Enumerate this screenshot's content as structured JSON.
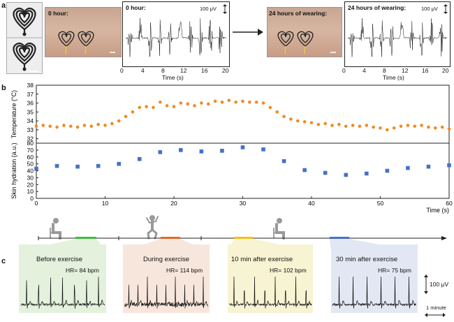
{
  "panels": {
    "a": "a",
    "b": "b",
    "c": "c"
  },
  "panel_a": {
    "photo1_label": "0 hour:",
    "photo2_label": "24 hours of wearing:",
    "chart1": {
      "title": "0 hour:",
      "scale": "100 μV",
      "xlabel": "Time (s)",
      "xticks": [
        "0",
        "4",
        "8",
        "12",
        "16",
        "20"
      ]
    },
    "chart2": {
      "title": "24 hours of wearing:",
      "scale": "100 μV",
      "xlabel": "Time (s)",
      "xticks": [
        "0",
        "4",
        "8",
        "12",
        "16",
        "20"
      ]
    }
  },
  "panel_c": {
    "segments": [
      {
        "title": "Before exercise",
        "hr": "HR= 84 bpm",
        "bg": "#e3f1dd",
        "marker": "#3fbf3f"
      },
      {
        "title": "During exercise",
        "hr": "HR= 114 bpm",
        "bg": "#f7e6dc",
        "marker": "#e06a2a"
      },
      {
        "title": "10 min after exercise",
        "hr": "HR= 102 bpm",
        "bg": "#f7f3d3",
        "marker": "#f0c21a"
      },
      {
        "title": "30 min after exercise",
        "hr": "HR= 75 bpm",
        "bg": "#e2e8f3",
        "marker": "#4a6fc8"
      }
    ],
    "scale_v": "100 μV",
    "scale_t": "1 minute"
  },
  "chart_data": [
    {
      "type": "scatter",
      "title": "",
      "xlabel": "Time (s)",
      "ylabel": "Temperature (°C)",
      "xlim": [
        0,
        60
      ],
      "ylim": [
        31.5,
        38
      ],
      "yticks": [
        32,
        33,
        34,
        35,
        36,
        37,
        38
      ],
      "xticks": [
        0,
        10,
        20,
        30,
        40,
        50,
        60
      ],
      "color": "#f08a24",
      "x": [
        0,
        1,
        2,
        3,
        4,
        5,
        6,
        7,
        8,
        9,
        10,
        11,
        12,
        13,
        14,
        15,
        16,
        17,
        18,
        19,
        20,
        21,
        22,
        23,
        24,
        25,
        26,
        27,
        28,
        29,
        30,
        31,
        32,
        33,
        34,
        35,
        36,
        37,
        38,
        39,
        40,
        41,
        42,
        43,
        44,
        45,
        46,
        47,
        48,
        49,
        50,
        51,
        52,
        53,
        54,
        55,
        56,
        57,
        58,
        59,
        60
      ],
      "y": [
        33.4,
        33.5,
        33.4,
        33.3,
        33.5,
        33.4,
        33.3,
        33.5,
        33.4,
        33.6,
        33.5,
        33.7,
        34.0,
        34.5,
        35.0,
        35.5,
        35.6,
        35.5,
        36.1,
        35.7,
        35.6,
        36.0,
        35.9,
        35.7,
        36.0,
        35.9,
        36.2,
        36.1,
        36.3,
        36.1,
        36.2,
        36.1,
        36.1,
        36.0,
        35.5,
        35.0,
        34.5,
        34.2,
        34.0,
        33.9,
        33.8,
        33.6,
        33.7,
        33.5,
        33.6,
        33.4,
        33.5,
        33.4,
        33.5,
        33.3,
        33.2,
        33.0,
        33.2,
        33.4,
        33.5,
        33.4,
        33.5,
        33.3,
        33.2,
        33.3,
        33.1
      ]
    },
    {
      "type": "scatter",
      "title": "",
      "xlabel": "Time (s)",
      "ylabel": "Skin hydration (a.u.)",
      "xlim": [
        0,
        60
      ],
      "ylim": [
        0,
        80
      ],
      "yticks": [
        0,
        10,
        20,
        30,
        40,
        50,
        60,
        70,
        80
      ],
      "xticks": [
        0,
        10,
        20,
        30,
        40,
        50,
        60
      ],
      "color": "#4472c4",
      "x": [
        0,
        3,
        6,
        9,
        12,
        15,
        18,
        21,
        24,
        27,
        30,
        33,
        36,
        39,
        42,
        45,
        48,
        51,
        54,
        57,
        60
      ],
      "y": [
        43,
        47,
        46,
        47,
        50,
        57,
        67,
        70,
        68,
        69,
        74,
        71,
        54,
        41,
        37,
        34,
        36,
        40,
        44,
        46,
        48
      ]
    }
  ]
}
